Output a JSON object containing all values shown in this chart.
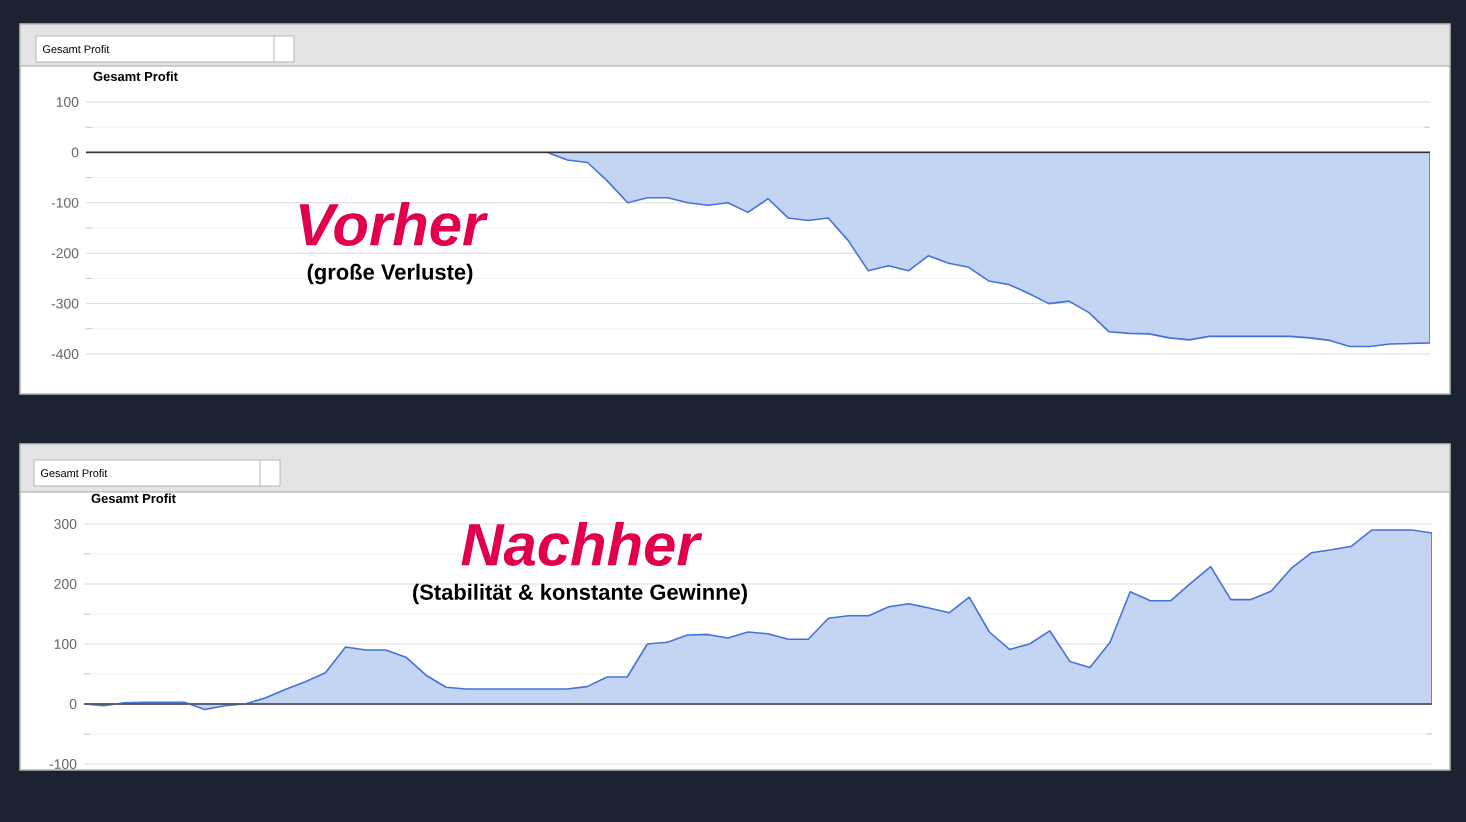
{
  "chart_data": [
    {
      "type": "area",
      "title": "Gesamt Profit",
      "annotations": [
        "Gesamt Profit",
        "Vorher",
        "(große Verluste)"
      ],
      "categories": [
        null,
        null,
        null,
        null,
        null,
        null,
        null,
        null,
        null,
        null,
        null,
        null,
        null,
        null,
        null,
        null,
        null,
        null,
        null,
        null,
        null,
        null,
        null,
        null,
        null,
        null,
        null,
        null,
        null,
        null,
        null,
        null,
        null,
        null,
        null,
        null,
        null,
        null,
        null,
        null,
        null,
        null,
        null,
        null,
        null,
        null,
        null,
        null,
        null,
        null,
        null,
        null,
        null,
        null,
        null,
        null,
        null,
        null,
        null,
        null,
        null,
        null,
        null,
        null,
        null,
        null,
        null,
        null
      ],
      "series": [
        {
          "color": "#c4d4f3",
          "values": [
            0,
            0,
            0,
            0,
            0,
            0,
            0,
            0,
            0,
            0,
            0,
            0,
            0,
            0,
            0,
            0,
            0,
            0,
            0,
            0,
            0,
            0,
            0,
            0,
            -15,
            -20,
            -57,
            -100,
            -90,
            -90,
            -100,
            -105,
            -100,
            -119,
            -92,
            -130,
            -135,
            -130,
            -175,
            -235,
            -225,
            -235,
            -205,
            -220,
            -228,
            -255,
            -262,
            -280,
            -300,
            -295,
            -318,
            -356,
            -359,
            -360,
            -368,
            -372,
            -365,
            -365,
            -365,
            -365,
            -365,
            -368,
            -373,
            -385,
            -385,
            -380,
            -379,
            -378
          ]
        }
      ],
      "ylim": [
        -400,
        100
      ],
      "yticks": [
        -400,
        -300,
        -200,
        -100,
        0,
        100
      ],
      "grid": "y",
      "tick_labels": "y",
      "ref_lines": [
        {
          "axis": "y",
          "value": 0,
          "color": "#333333"
        }
      ]
    },
    {
      "type": "area",
      "title": "Gesamt Profit",
      "annotations": [
        "Gesamt Profit",
        "Nachher",
        "(Stabilität & konstante Gewinne)"
      ],
      "categories": [
        null,
        null,
        null,
        null,
        null,
        null,
        null,
        null,
        null,
        null,
        null,
        null,
        null,
        null,
        null,
        null,
        null,
        null,
        null,
        null,
        null,
        null,
        null,
        null,
        null,
        null,
        null,
        null,
        null,
        null,
        null,
        null,
        null,
        null,
        null,
        null,
        null,
        null,
        null,
        null,
        null,
        null,
        null,
        null,
        null,
        null,
        null,
        null,
        null,
        null,
        null,
        null,
        null,
        null,
        null,
        null,
        null,
        null,
        null,
        null,
        null,
        null,
        null,
        null,
        null,
        null,
        null,
        null
      ],
      "series": [
        {
          "color": "#c4d4f3",
          "values": [
            0,
            -3,
            2,
            3,
            3,
            3,
            -9,
            -3,
            0,
            10,
            24,
            37,
            52,
            95,
            90,
            90,
            78,
            48,
            28,
            25,
            25,
            25,
            25,
            25,
            25,
            29,
            45,
            45,
            100,
            103,
            115,
            116,
            110,
            120,
            117,
            108,
            108,
            143,
            147,
            147,
            162,
            167,
            160,
            152,
            178,
            120,
            91,
            100,
            122,
            71,
            61,
            103,
            187,
            172,
            172,
            201,
            229,
            174,
            174,
            188,
            226,
            252,
            257,
            263,
            290,
            290,
            290,
            285
          ]
        }
      ],
      "ylim": [
        -100,
        300
      ],
      "yticks": [
        -100,
        0,
        100,
        200,
        300
      ],
      "grid": "y",
      "tick_labels": "y",
      "ref_lines": [
        {
          "axis": "y",
          "value": 0,
          "color": "#555555"
        }
      ]
    }
  ]
}
